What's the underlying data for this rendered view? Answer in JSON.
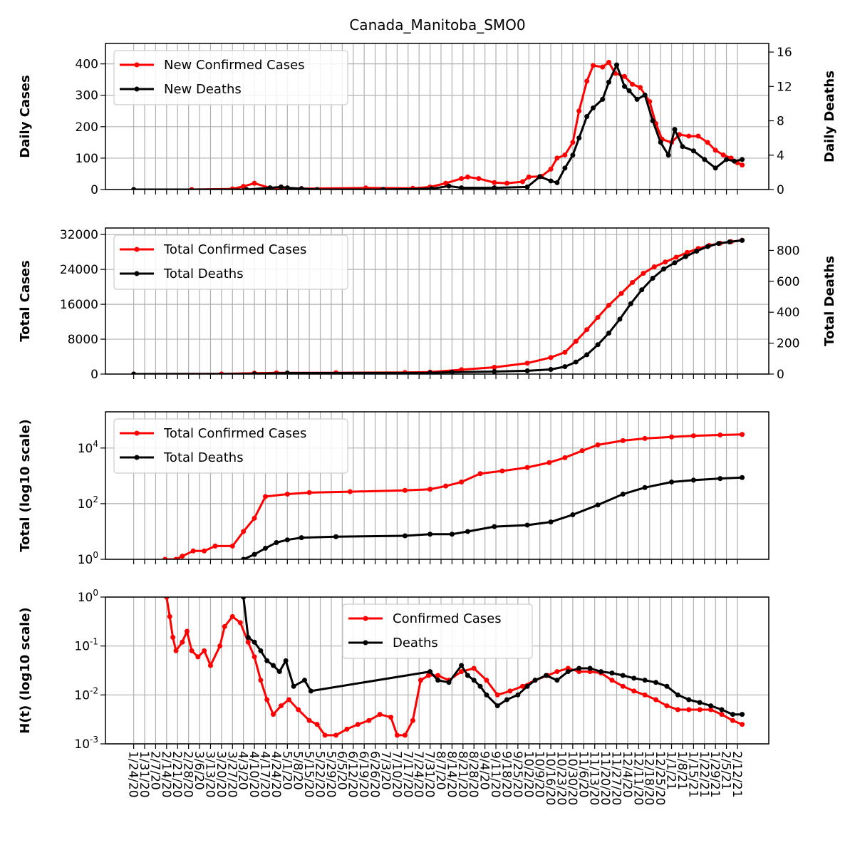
{
  "figure_title": "Canada_Manitoba_SMO0",
  "colors": {
    "cases": "#ff0000",
    "deaths": "#000000",
    "grid": "#b0b0b0"
  },
  "chart_data": [
    {
      "type": "line",
      "panel": "daily",
      "ylabel": "Daily Cases",
      "y2label": "Daily Deaths",
      "ylim": [
        0,
        465
      ],
      "y2lim": [
        0,
        17
      ],
      "yticks": [
        "0",
        "100",
        "200",
        "300",
        "400"
      ],
      "y2ticks": [
        "0",
        "4",
        "8",
        "12",
        "16"
      ],
      "legend_position": "upper-left",
      "series": [
        {
          "name": "New Confirmed Cases",
          "axis": "left",
          "x": [
            "1/24/20",
            "3/1/20",
            "3/27/20",
            "4/3/20",
            "4/10/20",
            "4/20/20",
            "5/10/20",
            "6/20/20",
            "7/20/20",
            "7/31/20",
            "8/10/20",
            "8/20/20",
            "8/24/20",
            "8/31/20",
            "9/10/20",
            "9/18/20",
            "9/28/20",
            "10/2/20",
            "10/10/20",
            "10/16/20",
            "10/20/20",
            "10/25/20",
            "10/30/20",
            "11/3/20",
            "11/8/20",
            "11/12/20",
            "11/18/20",
            "11/22/20",
            "11/26/20",
            "12/2/20",
            "12/7/20",
            "12/12/20",
            "12/18/20",
            "12/22/20",
            "12/26/20",
            "1/1/21",
            "1/6/21",
            "1/12/21",
            "1/18/21",
            "1/24/21",
            "1/29/21",
            "2/3/21",
            "2/8/21",
            "2/12/21",
            "2/15/21"
          ],
          "y": [
            0,
            0,
            2,
            10,
            20,
            5,
            3,
            5,
            4,
            8,
            20,
            35,
            40,
            35,
            22,
            20,
            25,
            40,
            42,
            65,
            100,
            110,
            150,
            250,
            345,
            395,
            390,
            405,
            370,
            360,
            335,
            325,
            280,
            210,
            160,
            150,
            175,
            170,
            170,
            150,
            125,
            110,
            100,
            85,
            78
          ]
        },
        {
          "name": "New Deaths",
          "axis": "right",
          "x": [
            "1/24/20",
            "4/5/20",
            "4/20/20",
            "4/27/20",
            "5/1/20",
            "5/10/20",
            "5/20/20",
            "7/1/20",
            "8/1/20",
            "8/12/20",
            "8/20/20",
            "9/10/20",
            "10/1/20",
            "10/9/20",
            "10/16/20",
            "10/20/20",
            "10/25/20",
            "10/30/20",
            "11/3/20",
            "11/8/20",
            "11/12/20",
            "11/18/20",
            "11/22/20",
            "11/27/20",
            "12/2/20",
            "12/5/20",
            "12/10/20",
            "12/15/20",
            "12/20/20",
            "12/25/20",
            "12/30/20",
            "1/3/21",
            "1/8/21",
            "1/15/21",
            "1/22/21",
            "1/29/21",
            "2/5/21",
            "2/10/21",
            "2/15/21"
          ],
          "y": [
            0,
            0,
            0.2,
            0.3,
            0.2,
            0.1,
            0,
            0,
            0.1,
            0.4,
            0.2,
            0.2,
            0.3,
            1.5,
            1,
            0.8,
            2.5,
            4,
            6,
            8.5,
            9.5,
            10.5,
            12.5,
            14.5,
            12,
            11.5,
            10.5,
            11,
            8,
            5.5,
            4,
            7,
            5,
            4.5,
            3.5,
            2.5,
            3.5,
            3.3,
            3.5
          ]
        }
      ]
    },
    {
      "type": "line",
      "panel": "total",
      "ylabel": "Total Cases",
      "y2label": "Total Deaths",
      "ylim": [
        0,
        33500
      ],
      "y2lim": [
        0,
        945
      ],
      "yticks": [
        "0",
        "8000",
        "16000",
        "24000",
        "32000"
      ],
      "y2ticks": [
        "0",
        "200",
        "400",
        "600",
        "800"
      ],
      "legend_position": "upper-left",
      "series": [
        {
          "name": "Total Confirmed Cases",
          "axis": "left",
          "x": [
            "1/24/20",
            "3/20/20",
            "4/10/20",
            "4/24/20",
            "6/1/20",
            "7/15/20",
            "7/31/20",
            "8/20/20",
            "9/10/20",
            "10/1/20",
            "10/16/20",
            "10/25/20",
            "11/1/20",
            "11/8/20",
            "11/15/20",
            "11/22/20",
            "11/30/20",
            "12/7/20",
            "12/14/20",
            "12/21/20",
            "12/28/20",
            "1/4/21",
            "1/11/21",
            "1/18/21",
            "1/25/21",
            "2/1/21",
            "2/8/21",
            "2/15/21"
          ],
          "y": [
            0,
            30,
            200,
            270,
            300,
            360,
            450,
            1000,
            1550,
            2500,
            3800,
            5000,
            7500,
            10200,
            13000,
            15800,
            18500,
            21000,
            23100,
            24600,
            25700,
            26800,
            27900,
            28800,
            29500,
            30000,
            30350,
            30700
          ]
        },
        {
          "name": "Total Deaths",
          "axis": "right",
          "x": [
            "1/24/20",
            "4/10/20",
            "5/1/20",
            "7/31/20",
            "8/14/20",
            "9/10/20",
            "10/1/20",
            "10/16/20",
            "10/25/20",
            "11/1/20",
            "11/8/20",
            "11/15/20",
            "11/22/20",
            "11/29/20",
            "12/6/20",
            "12/13/20",
            "12/20/20",
            "12/27/20",
            "1/3/21",
            "1/10/21",
            "1/17/21",
            "1/24/21",
            "1/31/21",
            "2/7/21",
            "2/15/21"
          ],
          "y": [
            0,
            1,
            7,
            8,
            12,
            16,
            21,
            30,
            48,
            78,
            125,
            190,
            265,
            355,
            455,
            545,
            620,
            680,
            720,
            760,
            795,
            825,
            845,
            855,
            865
          ]
        }
      ]
    },
    {
      "type": "line",
      "panel": "total-log",
      "ylabel": "Total (log10 scale)",
      "yscale": "log",
      "ylim": [
        1,
        200000
      ],
      "yticks": [
        "10^0",
        "10^2",
        "10^4"
      ],
      "legend_position": "upper-left",
      "series": [
        {
          "name": "Total Confirmed Cases",
          "x": [
            "2/13/20",
            "2/20/20",
            "2/24/20",
            "3/2/20",
            "3/9/20",
            "3/16/20",
            "3/27/20",
            "4/3/20",
            "4/10/20",
            "4/17/20",
            "5/1/20",
            "5/15/20",
            "6/10/20",
            "7/15/20",
            "7/31/20",
            "8/10/20",
            "8/20/20",
            "9/1/20",
            "9/15/20",
            "10/1/20",
            "10/15/20",
            "10/25/20",
            "11/5/20",
            "11/15/20",
            "12/1/20",
            "12/15/20",
            "1/1/21",
            "1/15/21",
            "2/1/21",
            "2/15/21"
          ],
          "y": [
            1,
            1,
            1.3,
            2,
            2,
            3,
            3,
            10,
            30,
            180,
            220,
            250,
            270,
            300,
            330,
            430,
            600,
            1200,
            1500,
            2000,
            3000,
            4500,
            8000,
            13000,
            18500,
            22000,
            25000,
            27500,
            29500,
            30700
          ]
        },
        {
          "name": "Total Deaths",
          "x": [
            "4/3/20",
            "4/10/20",
            "4/17/20",
            "4/24/20",
            "5/1/20",
            "5/10/20",
            "6/1/20",
            "7/15/20",
            "7/31/20",
            "8/14/20",
            "8/24/20",
            "9/10/20",
            "10/1/20",
            "10/16/20",
            "10/30/20",
            "11/15/20",
            "12/1/20",
            "12/15/20",
            "1/1/21",
            "1/15/21",
            "2/1/21",
            "2/15/21"
          ],
          "y": [
            1,
            1.5,
            2.5,
            4,
            5,
            6,
            6.5,
            7,
            8,
            8,
            10,
            15,
            17,
            22,
            40,
            90,
            220,
            380,
            600,
            700,
            800,
            870
          ]
        }
      ]
    },
    {
      "type": "scatter",
      "panel": "H(t)",
      "ylabel": "H(t) (log10 scale)",
      "yscale": "log",
      "ylim": [
        0.001,
        1
      ],
      "yticks": [
        "10^-3",
        "10^-2",
        "10^-1",
        "10^0"
      ],
      "legend_position": "upper-center",
      "series": [
        {
          "name": "Confirmed Cases",
          "x": [
            "2/14/20",
            "2/16/20",
            "2/18/20",
            "2/20/20",
            "2/24/20",
            "2/27/20",
            "3/1/20",
            "3/5/20",
            "3/9/20",
            "3/13/20",
            "3/19/20",
            "3/22/20",
            "3/27/20",
            "4/1/20",
            "4/6/20",
            "4/10/20",
            "4/14/20",
            "4/18/20",
            "4/22/20",
            "4/27/20",
            "5/2/20",
            "5/8/20",
            "5/15/20",
            "5/20/20",
            "5/25/20",
            "6/1/20",
            "6/8/20",
            "6/15/20",
            "6/22/20",
            "6/29/20",
            "7/6/20",
            "7/10/20",
            "7/15/20",
            "7/20/20",
            "7/25/20",
            "7/30/20",
            "8/5/20",
            "8/12/20",
            "8/20/20",
            "8/28/20",
            "9/5/20",
            "9/12/20",
            "9/20/20",
            "9/28/20",
            "10/6/20",
            "10/14/20",
            "10/20/20",
            "10/27/20",
            "11/3/20",
            "11/10/20",
            "11/17/20",
            "11/24/20",
            "12/1/20",
            "12/8/20",
            "12/15/20",
            "12/22/20",
            "12/29/20",
            "1/5/21",
            "1/12/21",
            "1/19/21",
            "1/26/21",
            "2/2/21",
            "2/9/21",
            "2/15/21"
          ],
          "y": [
            1,
            0.4,
            0.15,
            0.08,
            0.12,
            0.2,
            0.08,
            0.06,
            0.08,
            0.04,
            0.1,
            0.25,
            0.4,
            0.3,
            0.12,
            0.06,
            0.02,
            0.008,
            0.004,
            0.006,
            0.008,
            0.005,
            0.003,
            0.0025,
            0.0015,
            0.0015,
            0.002,
            0.0025,
            0.003,
            0.004,
            0.0035,
            0.0015,
            0.0015,
            0.003,
            0.02,
            0.025,
            0.025,
            0.02,
            0.03,
            0.035,
            0.02,
            0.01,
            0.012,
            0.015,
            0.02,
            0.025,
            0.03,
            0.035,
            0.03,
            0.03,
            0.028,
            0.02,
            0.015,
            0.012,
            0.01,
            0.008,
            0.006,
            0.005,
            0.005,
            0.005,
            0.005,
            0.004,
            0.003,
            0.0025
          ]
        },
        {
          "name": "Deaths",
          "x": [
            "4/3/20",
            "4/6/20",
            "4/10/20",
            "4/14/20",
            "4/18/20",
            "4/22/20",
            "4/26/20",
            "4/30/20",
            "5/5/20",
            "5/12/20",
            "5/16/20",
            "7/31/20",
            "8/5/20",
            "8/12/20",
            "8/20/20",
            "8/24/20",
            "8/28/20",
            "9/1/20",
            "9/5/20",
            "9/12/20",
            "9/18/20",
            "9/25/20",
            "10/1/20",
            "10/6/20",
            "10/13/20",
            "10/20/20",
            "10/27/20",
            "11/3/20",
            "11/10/20",
            "11/17/20",
            "11/24/20",
            "12/1/20",
            "12/8/20",
            "12/15/20",
            "12/22/20",
            "12/29/20",
            "1/5/21",
            "1/12/21",
            "1/19/21",
            "1/26/21",
            "2/2/21",
            "2/9/21",
            "2/15/21"
          ],
          "y": [
            1,
            0.15,
            0.12,
            0.08,
            0.05,
            0.04,
            0.03,
            0.05,
            0.015,
            0.02,
            0.012,
            0.03,
            0.02,
            0.018,
            0.04,
            0.025,
            0.02,
            0.015,
            0.01,
            0.006,
            0.008,
            0.01,
            0.015,
            0.02,
            0.025,
            0.02,
            0.03,
            0.035,
            0.035,
            0.03,
            0.028,
            0.025,
            0.022,
            0.02,
            0.018,
            0.015,
            0.01,
            0.008,
            0.007,
            0.006,
            0.005,
            0.004,
            0.004
          ]
        }
      ]
    }
  ],
  "x_tick_labels": [
    "1/24/20",
    "1/31/20",
    "2/7/20",
    "2/14/20",
    "2/21/20",
    "2/28/20",
    "3/6/20",
    "3/13/20",
    "3/20/20",
    "3/27/20",
    "4/3/20",
    "4/10/20",
    "4/17/20",
    "4/24/20",
    "5/1/20",
    "5/8/20",
    "5/15/20",
    "5/22/20",
    "5/29/20",
    "6/5/20",
    "6/12/20",
    "6/19/20",
    "6/26/20",
    "7/3/20",
    "7/10/20",
    "7/17/20",
    "7/24/20",
    "7/31/20",
    "8/7/20",
    "8/14/20",
    "8/21/20",
    "8/28/20",
    "9/4/20",
    "9/11/20",
    "9/18/20",
    "9/25/20",
    "10/2/20",
    "10/9/20",
    "10/16/20",
    "10/23/20",
    "10/30/20",
    "11/6/20",
    "11/13/20",
    "11/20/20",
    "11/27/20",
    "12/4/20",
    "12/11/20",
    "12/18/20",
    "12/25/20",
    "1/1/21",
    "1/8/21",
    "1/15/21",
    "1/22/21",
    "1/29/21",
    "2/5/21",
    "2/12/21"
  ],
  "x_range": [
    "1/6/20",
    "3/4/21"
  ]
}
